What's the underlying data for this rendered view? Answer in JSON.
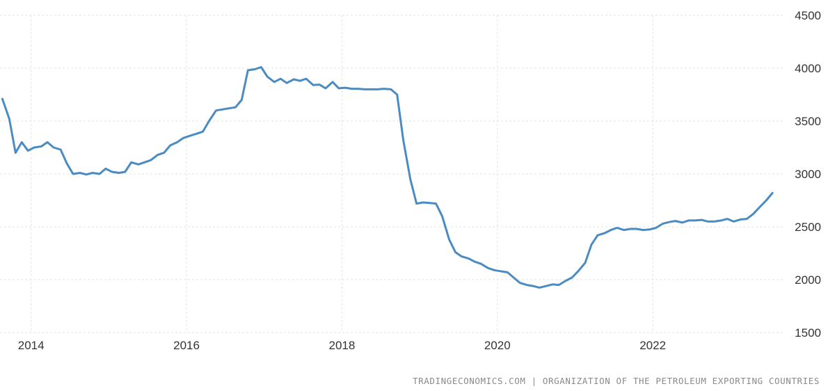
{
  "chart_data": {
    "type": "line",
    "title": "",
    "xlabel": "",
    "ylabel": "",
    "xlim": [
      2013.6,
      2023.7
    ],
    "ylim": [
      1500,
      4500
    ],
    "grid": true,
    "x_ticks": [
      {
        "value": 2014,
        "label": "2014"
      },
      {
        "value": 2016,
        "label": "2016"
      },
      {
        "value": 2018,
        "label": "2018"
      },
      {
        "value": 2020,
        "label": "2020"
      },
      {
        "value": 2022,
        "label": "2022"
      }
    ],
    "y_ticks": [
      {
        "value": 1500,
        "label": "1500"
      },
      {
        "value": 2000,
        "label": "2000"
      },
      {
        "value": 2500,
        "label": "2500"
      },
      {
        "value": 3000,
        "label": "3000"
      },
      {
        "value": 3500,
        "label": "3500"
      },
      {
        "value": 4000,
        "label": "4000"
      },
      {
        "value": 4500,
        "label": "4500"
      }
    ],
    "series": [
      {
        "color": "#4a8bc2",
        "points": [
          [
            2013.63,
            3710
          ],
          [
            2013.72,
            3520
          ],
          [
            2013.8,
            3200
          ],
          [
            2013.88,
            3300
          ],
          [
            2013.96,
            3220
          ],
          [
            2014.04,
            3250
          ],
          [
            2014.13,
            3260
          ],
          [
            2014.21,
            3300
          ],
          [
            2014.29,
            3250
          ],
          [
            2014.38,
            3230
          ],
          [
            2014.46,
            3100
          ],
          [
            2014.54,
            3000
          ],
          [
            2014.63,
            3010
          ],
          [
            2014.71,
            2995
          ],
          [
            2014.79,
            3010
          ],
          [
            2014.88,
            3000
          ],
          [
            2014.96,
            3050
          ],
          [
            2015.04,
            3020
          ],
          [
            2015.13,
            3010
          ],
          [
            2015.21,
            3020
          ],
          [
            2015.29,
            3110
          ],
          [
            2015.38,
            3090
          ],
          [
            2015.46,
            3110
          ],
          [
            2015.54,
            3130
          ],
          [
            2015.63,
            3180
          ],
          [
            2015.71,
            3200
          ],
          [
            2015.79,
            3270
          ],
          [
            2015.88,
            3300
          ],
          [
            2015.96,
            3340
          ],
          [
            2016.04,
            3360
          ],
          [
            2016.13,
            3380
          ],
          [
            2016.21,
            3400
          ],
          [
            2016.29,
            3500
          ],
          [
            2016.38,
            3600
          ],
          [
            2016.46,
            3610
          ],
          [
            2016.54,
            3620
          ],
          [
            2016.63,
            3630
          ],
          [
            2016.71,
            3700
          ],
          [
            2016.79,
            3980
          ],
          [
            2016.88,
            3990
          ],
          [
            2016.96,
            4010
          ],
          [
            2017.04,
            3920
          ],
          [
            2017.13,
            3870
          ],
          [
            2017.21,
            3900
          ],
          [
            2017.29,
            3860
          ],
          [
            2017.38,
            3895
          ],
          [
            2017.46,
            3880
          ],
          [
            2017.54,
            3900
          ],
          [
            2017.63,
            3840
          ],
          [
            2017.71,
            3845
          ],
          [
            2017.79,
            3810
          ],
          [
            2017.88,
            3870
          ],
          [
            2017.96,
            3810
          ],
          [
            2018.04,
            3815
          ],
          [
            2018.13,
            3805
          ],
          [
            2018.21,
            3805
          ],
          [
            2018.29,
            3800
          ],
          [
            2018.38,
            3800
          ],
          [
            2018.46,
            3800
          ],
          [
            2018.54,
            3805
          ],
          [
            2018.63,
            3800
          ],
          [
            2018.71,
            3750
          ],
          [
            2018.79,
            3320
          ],
          [
            2018.88,
            2950
          ],
          [
            2018.96,
            2720
          ],
          [
            2019.04,
            2730
          ],
          [
            2019.13,
            2725
          ],
          [
            2019.21,
            2720
          ],
          [
            2019.29,
            2600
          ],
          [
            2019.38,
            2380
          ],
          [
            2019.46,
            2260
          ],
          [
            2019.54,
            2220
          ],
          [
            2019.63,
            2200
          ],
          [
            2019.71,
            2170
          ],
          [
            2019.79,
            2150
          ],
          [
            2019.88,
            2110
          ],
          [
            2019.96,
            2090
          ],
          [
            2020.04,
            2080
          ],
          [
            2020.13,
            2070
          ],
          [
            2020.21,
            2020
          ],
          [
            2020.29,
            1970
          ],
          [
            2020.38,
            1950
          ],
          [
            2020.46,
            1940
          ],
          [
            2020.54,
            1925
          ],
          [
            2020.63,
            1940
          ],
          [
            2020.71,
            1955
          ],
          [
            2020.79,
            1950
          ],
          [
            2020.88,
            1990
          ],
          [
            2020.96,
            2020
          ],
          [
            2021.04,
            2080
          ],
          [
            2021.13,
            2160
          ],
          [
            2021.21,
            2330
          ],
          [
            2021.29,
            2420
          ],
          [
            2021.38,
            2440
          ],
          [
            2021.46,
            2470
          ],
          [
            2021.54,
            2490
          ],
          [
            2021.63,
            2470
          ],
          [
            2021.71,
            2480
          ],
          [
            2021.79,
            2480
          ],
          [
            2021.88,
            2470
          ],
          [
            2021.96,
            2475
          ],
          [
            2022.04,
            2490
          ],
          [
            2022.13,
            2530
          ],
          [
            2022.21,
            2545
          ],
          [
            2022.29,
            2555
          ],
          [
            2022.38,
            2540
          ],
          [
            2022.46,
            2560
          ],
          [
            2022.54,
            2560
          ],
          [
            2022.63,
            2565
          ],
          [
            2022.71,
            2550
          ],
          [
            2022.79,
            2550
          ],
          [
            2022.88,
            2560
          ],
          [
            2022.96,
            2575
          ],
          [
            2023.04,
            2550
          ],
          [
            2023.13,
            2570
          ],
          [
            2023.21,
            2575
          ],
          [
            2023.29,
            2620
          ],
          [
            2023.38,
            2690
          ],
          [
            2023.46,
            2750
          ],
          [
            2023.54,
            2820
          ]
        ]
      }
    ]
  },
  "source_text": "TRADINGECONOMICS.COM | ORGANIZATION OF THE PETROLEUM EXPORTING COUNTRIES"
}
